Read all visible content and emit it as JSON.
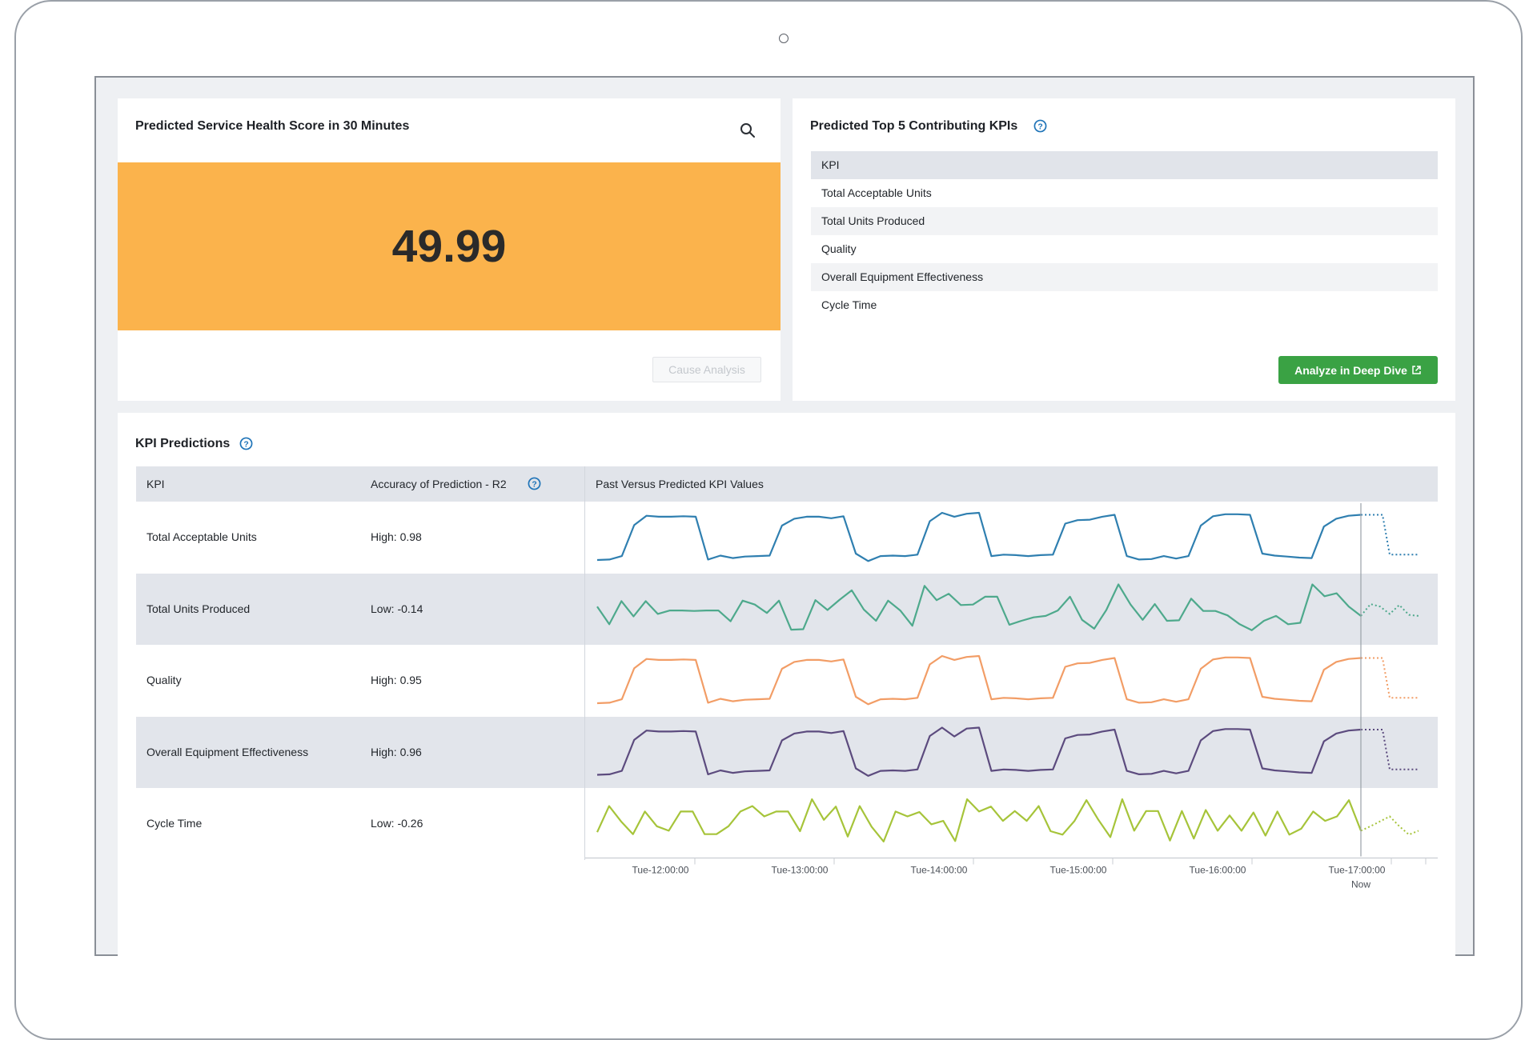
{
  "score_panel": {
    "title": "Predicted Service Health Score in 30 Minutes",
    "score": "49.99",
    "cause_button": "Cause Analysis",
    "score_color": "#fbb34c"
  },
  "top_kpis_panel": {
    "title": "Predicted Top 5 Contributing KPIs",
    "column_header": "KPI",
    "items": [
      "Total Acceptable Units",
      "Total Units Produced",
      "Quality",
      "Overall Equipment Effectiveness",
      "Cycle Time"
    ],
    "analyze_button": "Analyze in Deep Dive",
    "button_color": "#3aa244"
  },
  "predictions_panel": {
    "title": "KPI Predictions",
    "headers": {
      "kpi": "KPI",
      "accuracy": "Accuracy of Prediction - R2",
      "chart": "Past Versus Predicted KPI Values"
    },
    "rows": [
      {
        "kpi": "Total Acceptable Units",
        "accuracy": "High: 0.98"
      },
      {
        "kpi": "Total Units Produced",
        "accuracy": "Low: -0.14"
      },
      {
        "kpi": "Quality",
        "accuracy": "High: 0.95"
      },
      {
        "kpi": "Overall Equipment Effectiveness",
        "accuracy": "High: 0.96"
      },
      {
        "kpi": "Cycle Time",
        "accuracy": "Low: -0.26"
      }
    ]
  },
  "chart_data": {
    "type": "line",
    "x_ticks": [
      "Tue-12:00:00",
      "Tue-13:00:00",
      "Tue-14:00:00",
      "Tue-15:00:00",
      "Tue-16:00:00",
      "Tue-17:00:00"
    ],
    "now_label": "Now",
    "series": [
      {
        "color": "#2f7fb0",
        "values": [
          0.04,
          0.05,
          0.12,
          0.75,
          0.94,
          0.92,
          0.92,
          0.93,
          0.92,
          0.05,
          0.13,
          0.08,
          0.11,
          0.12,
          0.13,
          0.74,
          0.88,
          0.92,
          0.92,
          0.89,
          0.93,
          0.17,
          0.02,
          0.12,
          0.13,
          0.12,
          0.15,
          0.83,
          1.0,
          0.92,
          0.98,
          1.0,
          0.12,
          0.15,
          0.14,
          0.12,
          0.14,
          0.15,
          0.78,
          0.85,
          0.86,
          0.92,
          0.96,
          0.12,
          0.05,
          0.06,
          0.12,
          0.07,
          0.12,
          0.74,
          0.93,
          0.97,
          0.97,
          0.96,
          0.17,
          0.13,
          0.11,
          0.09,
          0.08,
          0.72,
          0.88,
          0.94,
          0.96
        ],
        "predicted": [
          0.96,
          0.96,
          0.96,
          0.96,
          0.15,
          0.15,
          0.15,
          0.15,
          0.15
        ]
      },
      {
        "color": "#4ea98c",
        "values": [
          0.55,
          0.19,
          0.66,
          0.35,
          0.66,
          0.4,
          0.47,
          0.47,
          0.46,
          0.47,
          0.47,
          0.25,
          0.67,
          0.59,
          0.42,
          0.67,
          0.08,
          0.09,
          0.68,
          0.48,
          0.69,
          0.88,
          0.49,
          0.26,
          0.67,
          0.47,
          0.16,
          0.97,
          0.68,
          0.81,
          0.58,
          0.59,
          0.75,
          0.75,
          0.18,
          0.26,
          0.33,
          0.36,
          0.47,
          0.75,
          0.28,
          0.1,
          0.48,
          1.0,
          0.59,
          0.28,
          0.6,
          0.26,
          0.27,
          0.71,
          0.46,
          0.46,
          0.37,
          0.19,
          0.07,
          0.26,
          0.36,
          0.19,
          0.22,
          1.0,
          0.76,
          0.82,
          0.55,
          0.36
        ],
        "predicted": [
          0.36,
          0.6,
          0.55,
          0.4,
          0.58,
          0.38,
          0.36
        ]
      },
      {
        "color": "#f29d66",
        "values": [
          0.04,
          0.05,
          0.12,
          0.75,
          0.94,
          0.92,
          0.92,
          0.93,
          0.92,
          0.05,
          0.13,
          0.08,
          0.11,
          0.12,
          0.13,
          0.74,
          0.88,
          0.92,
          0.92,
          0.89,
          0.93,
          0.17,
          0.02,
          0.12,
          0.13,
          0.12,
          0.15,
          0.83,
          1.0,
          0.92,
          0.98,
          1.0,
          0.12,
          0.15,
          0.14,
          0.12,
          0.14,
          0.15,
          0.78,
          0.85,
          0.86,
          0.92,
          0.96,
          0.12,
          0.05,
          0.06,
          0.12,
          0.07,
          0.12,
          0.74,
          0.93,
          0.97,
          0.97,
          0.96,
          0.17,
          0.13,
          0.11,
          0.09,
          0.08,
          0.72,
          0.88,
          0.94,
          0.96
        ],
        "predicted": [
          0.96,
          0.96,
          0.96,
          0.96,
          0.15,
          0.15,
          0.15,
          0.15,
          0.15
        ]
      },
      {
        "color": "#5c4b7e",
        "values": [
          0.04,
          0.05,
          0.12,
          0.75,
          0.94,
          0.92,
          0.92,
          0.93,
          0.92,
          0.05,
          0.13,
          0.08,
          0.11,
          0.12,
          0.13,
          0.74,
          0.88,
          0.92,
          0.92,
          0.89,
          0.93,
          0.17,
          0.02,
          0.12,
          0.13,
          0.12,
          0.15,
          0.83,
          1.0,
          0.82,
          0.98,
          1.0,
          0.12,
          0.15,
          0.14,
          0.12,
          0.14,
          0.15,
          0.78,
          0.85,
          0.86,
          0.92,
          0.96,
          0.12,
          0.05,
          0.06,
          0.12,
          0.07,
          0.12,
          0.74,
          0.93,
          0.97,
          0.97,
          0.96,
          0.17,
          0.13,
          0.11,
          0.09,
          0.08,
          0.72,
          0.88,
          0.94,
          0.96
        ],
        "predicted": [
          0.96,
          0.96,
          0.96,
          0.96,
          0.15,
          0.15,
          0.15,
          0.15,
          0.15
        ]
      },
      {
        "color": "#a6c43a",
        "values": [
          0.33,
          0.86,
          0.55,
          0.29,
          0.75,
          0.45,
          0.36,
          0.75,
          0.75,
          0.29,
          0.29,
          0.45,
          0.75,
          0.86,
          0.65,
          0.75,
          0.75,
          0.35,
          1.0,
          0.58,
          0.85,
          0.24,
          0.86,
          0.44,
          0.14,
          0.75,
          0.65,
          0.74,
          0.49,
          0.56,
          0.15,
          1.0,
          0.75,
          0.85,
          0.56,
          0.76,
          0.56,
          0.86,
          0.35,
          0.28,
          0.56,
          0.98,
          0.58,
          0.23,
          1.0,
          0.36,
          0.76,
          0.76,
          0.16,
          0.76,
          0.2,
          0.78,
          0.36,
          0.67,
          0.36,
          0.73,
          0.26,
          0.75,
          0.28,
          0.4,
          0.75,
          0.56,
          0.65,
          0.98,
          0.36
        ],
        "predicted": [
          0.36,
          0.45,
          0.55,
          0.65,
          0.45,
          0.28,
          0.36
        ]
      }
    ]
  }
}
